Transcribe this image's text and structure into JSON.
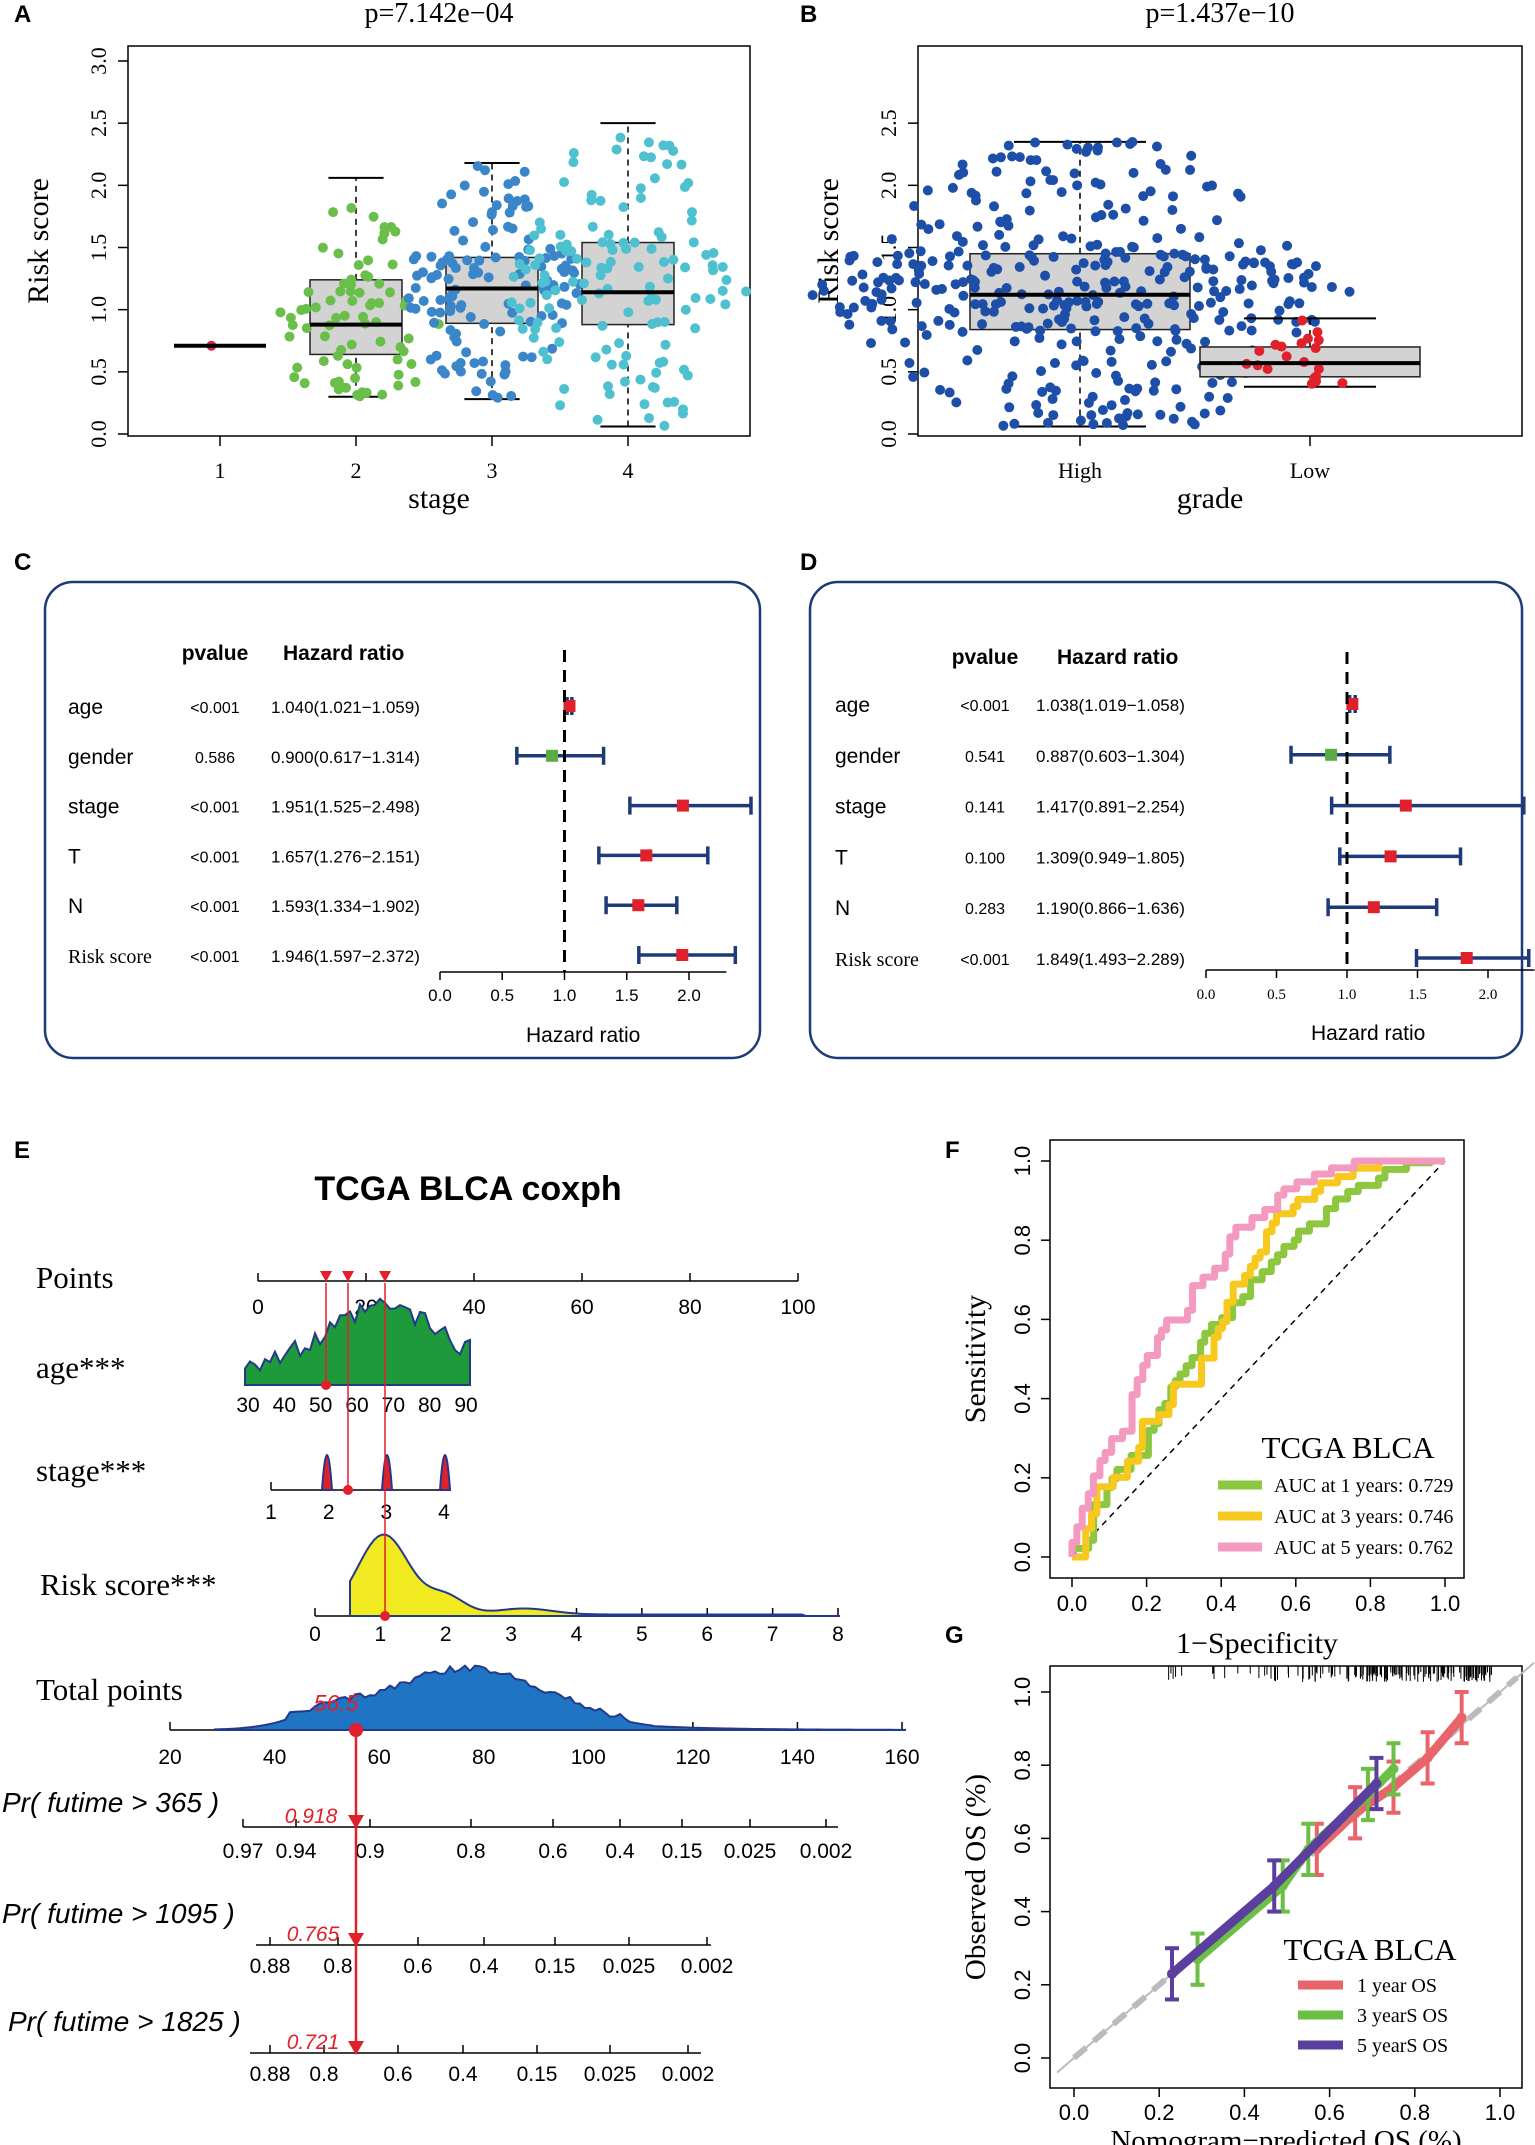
{
  "panel_letters": [
    "A",
    "B",
    "C",
    "D",
    "E",
    "F",
    "G"
  ],
  "chart_data": [
    {
      "panel": "A",
      "type": "box",
      "title": "p=7.142e−04",
      "xlabel": "stage",
      "ylabel": "Risk score",
      "categories": [
        "1",
        "2",
        "3",
        "4"
      ],
      "ylim": [
        0,
        3.0
      ],
      "yticks": [
        "0.0",
        "0.5",
        "1.0",
        "1.5",
        "2.0",
        "2.5",
        "3.0"
      ],
      "boxes": [
        {
          "min": 0.71,
          "q1": 0.71,
          "median": 0.71,
          "q3": 0.71,
          "max": 0.71,
          "n": 1
        },
        {
          "min": 0.3,
          "q1": 0.64,
          "median": 0.88,
          "q3": 1.24,
          "max": 2.06,
          "n": 75
        },
        {
          "min": 0.28,
          "q1": 0.89,
          "median": 1.17,
          "q3": 1.42,
          "max": 2.18,
          "n": 130
        },
        {
          "min": 0.06,
          "q1": 0.88,
          "median": 1.14,
          "q3": 1.54,
          "max": 2.5,
          "n": 135
        }
      ],
      "dot_colors": [
        "#e0204a",
        "#6abf4b",
        "#3a86c8",
        "#4fc0d0"
      ]
    },
    {
      "panel": "B",
      "type": "box",
      "title": "p=1.437e−10",
      "xlabel": "grade",
      "ylabel": "Risk score",
      "categories": [
        "High",
        "Low"
      ],
      "ylim": [
        0,
        3.0
      ],
      "yticks": [
        "0.0",
        "0.5",
        "1.0",
        "1.5",
        "2.0",
        "2.5"
      ],
      "boxes": [
        {
          "min": 0.06,
          "q1": 0.84,
          "median": 1.12,
          "q3": 1.45,
          "max": 2.35,
          "n": 380
        },
        {
          "min": 0.38,
          "q1": 0.46,
          "median": 0.57,
          "q3": 0.7,
          "max": 0.93,
          "n": 20
        }
      ],
      "dot_colors": [
        "#1e4fa8",
        "#e0202a"
      ]
    },
    {
      "panel": "C",
      "type": "forest",
      "header_pvalue": "pvalue",
      "header_hr": "Hazard ratio",
      "xlabel": "Hazard ratio",
      "xticks": [
        "0.0",
        "0.5",
        "1.0",
        "1.5",
        "2.0"
      ],
      "rows": [
        {
          "label": "age",
          "p": "<0.001",
          "hr_text": "1.040(1.021−1.059)",
          "hr": 1.04,
          "lo": 1.021,
          "hi": 1.059
        },
        {
          "label": "gender",
          "p": "0.586",
          "hr_text": "0.900(0.617−1.314)",
          "hr": 0.9,
          "lo": 0.617,
          "hi": 1.314
        },
        {
          "label": "stage",
          "p": "<0.001",
          "hr_text": "1.951(1.525−2.498)",
          "hr": 1.951,
          "lo": 1.525,
          "hi": 2.498
        },
        {
          "label": "T",
          "p": "<0.001",
          "hr_text": "1.657(1.276−2.151)",
          "hr": 1.657,
          "lo": 1.276,
          "hi": 2.151
        },
        {
          "label": "N",
          "p": "<0.001",
          "hr_text": "1.593(1.334−1.902)",
          "hr": 1.593,
          "lo": 1.334,
          "hi": 1.902
        },
        {
          "label": "Risk score",
          "p": "<0.001",
          "hr_text": "1.946(1.597−2.372)",
          "hr": 1.946,
          "lo": 1.597,
          "hi": 2.372
        }
      ]
    },
    {
      "panel": "D",
      "type": "forest",
      "header_pvalue": "pvalue",
      "header_hr": "Hazard ratio",
      "xlabel": "Hazard ratio",
      "xticks": [
        "0.0",
        "0.5",
        "1.0",
        "1.5",
        "2.0"
      ],
      "rows": [
        {
          "label": "age",
          "p": "<0.001",
          "hr_text": "1.038(1.019−1.058)",
          "hr": 1.038,
          "lo": 1.019,
          "hi": 1.058
        },
        {
          "label": "gender",
          "p": "0.541",
          "hr_text": "0.887(0.603−1.304)",
          "hr": 0.887,
          "lo": 0.603,
          "hi": 1.304
        },
        {
          "label": "stage",
          "p": "0.141",
          "hr_text": "1.417(0.891−2.254)",
          "hr": 1.417,
          "lo": 0.891,
          "hi": 2.254
        },
        {
          "label": "T",
          "p": "0.100",
          "hr_text": "1.309(0.949−1.805)",
          "hr": 1.309,
          "lo": 0.949,
          "hi": 1.805
        },
        {
          "label": "N",
          "p": "0.283",
          "hr_text": "1.190(0.866−1.636)",
          "hr": 1.19,
          "lo": 0.866,
          "hi": 1.636
        },
        {
          "label": "Risk score",
          "p": "<0.001",
          "hr_text": "1.849(1.493−2.289)",
          "hr": 1.849,
          "lo": 1.493,
          "hi": 2.289
        }
      ]
    },
    {
      "panel": "E",
      "type": "nomogram",
      "title": "TCGA BLCA coxph",
      "scales": [
        {
          "label": "Points",
          "ticks": [
            "0",
            "20",
            "40",
            "60",
            "80",
            "100"
          ]
        },
        {
          "label": "age***",
          "ticks": [
            "30",
            "40",
            "50",
            "60",
            "70",
            "80",
            "90"
          ]
        },
        {
          "label": "stage***",
          "ticks": [
            "1",
            "2",
            "3",
            "4"
          ]
        },
        {
          "label": "Risk score***",
          "ticks": [
            "0",
            "1",
            "2",
            "3",
            "4",
            "5",
            "6",
            "7",
            "8"
          ]
        },
        {
          "label": "Total points",
          "ticks": [
            "20",
            "40",
            "60",
            "80",
            "100",
            "120",
            "140",
            "160"
          ]
        },
        {
          "label": "Pr( futime > 365 )",
          "ticks": [
            "0.97",
            "0.94",
            "0.9",
            "0.8",
            "0.6",
            "0.4",
            "0.15",
            "0.025",
            "0.002"
          ]
        },
        {
          "label": "Pr( futime > 1095 )",
          "ticks": [
            "0.88",
            "0.8",
            "0.6",
            "0.4",
            "0.15",
            "0.025",
            "0.002"
          ]
        },
        {
          "label": "Pr( futime > 1825 )",
          "ticks": [
            "0.88",
            "0.8",
            "0.6",
            "0.4",
            "0.15",
            "0.025",
            "0.002"
          ]
        }
      ],
      "patient": {
        "age": 57,
        "stage": 2,
        "risk_score": 0.5,
        "total_points": "56.5",
        "pr365": "0.918",
        "pr1095": "0.765",
        "pr1825": "0.721"
      }
    },
    {
      "panel": "F",
      "type": "roc",
      "title": "TCGA BLCA",
      "xlabel": "1−Specificity",
      "ylabel": "Sensitivity",
      "xticks": [
        "0.0",
        "0.2",
        "0.4",
        "0.6",
        "0.8",
        "1.0"
      ],
      "yticks": [
        "0.0",
        "0.2",
        "0.4",
        "0.6",
        "0.8",
        "1.0"
      ],
      "series": [
        {
          "name": "AUC at 1 years: 0.729",
          "auc": 0.729,
          "color": "#8dc63f"
        },
        {
          "name": "AUC at 3 years: 0.746",
          "auc": 0.746,
          "color": "#f7c81e"
        },
        {
          "name": "AUC at 5 years: 0.762",
          "auc": 0.762,
          "color": "#f49ac1"
        }
      ]
    },
    {
      "panel": "G",
      "type": "calibration",
      "title": "TCGA BLCA",
      "xlabel": "Nomogram−predicted OS (%)",
      "ylabel": "Observed OS (%)",
      "xticks": [
        "0.0",
        "0.2",
        "0.4",
        "0.6",
        "0.8",
        "1.0"
      ],
      "yticks": [
        "0.0",
        "0.2",
        "0.4",
        "0.6",
        "0.8",
        "1.0"
      ],
      "series": [
        {
          "name": "1 year OS",
          "color": "#e8646a",
          "points": [
            [
              0.57,
              0.57
            ],
            [
              0.66,
              0.67
            ],
            [
              0.75,
              0.74
            ],
            [
              0.83,
              0.82
            ],
            [
              0.91,
              0.93
            ]
          ]
        },
        {
          "name": "3 yearS OS",
          "color": "#6cbf45",
          "points": [
            [
              0.29,
              0.27
            ],
            [
              0.49,
              0.47
            ],
            [
              0.55,
              0.57
            ],
            [
              0.69,
              0.72
            ],
            [
              0.75,
              0.79
            ]
          ]
        },
        {
          "name": "5 yearS OS",
          "color": "#5b3f9e",
          "points": [
            [
              0.23,
              0.23
            ],
            [
              0.47,
              0.47
            ],
            [
              0.71,
              0.75
            ]
          ]
        }
      ]
    }
  ]
}
